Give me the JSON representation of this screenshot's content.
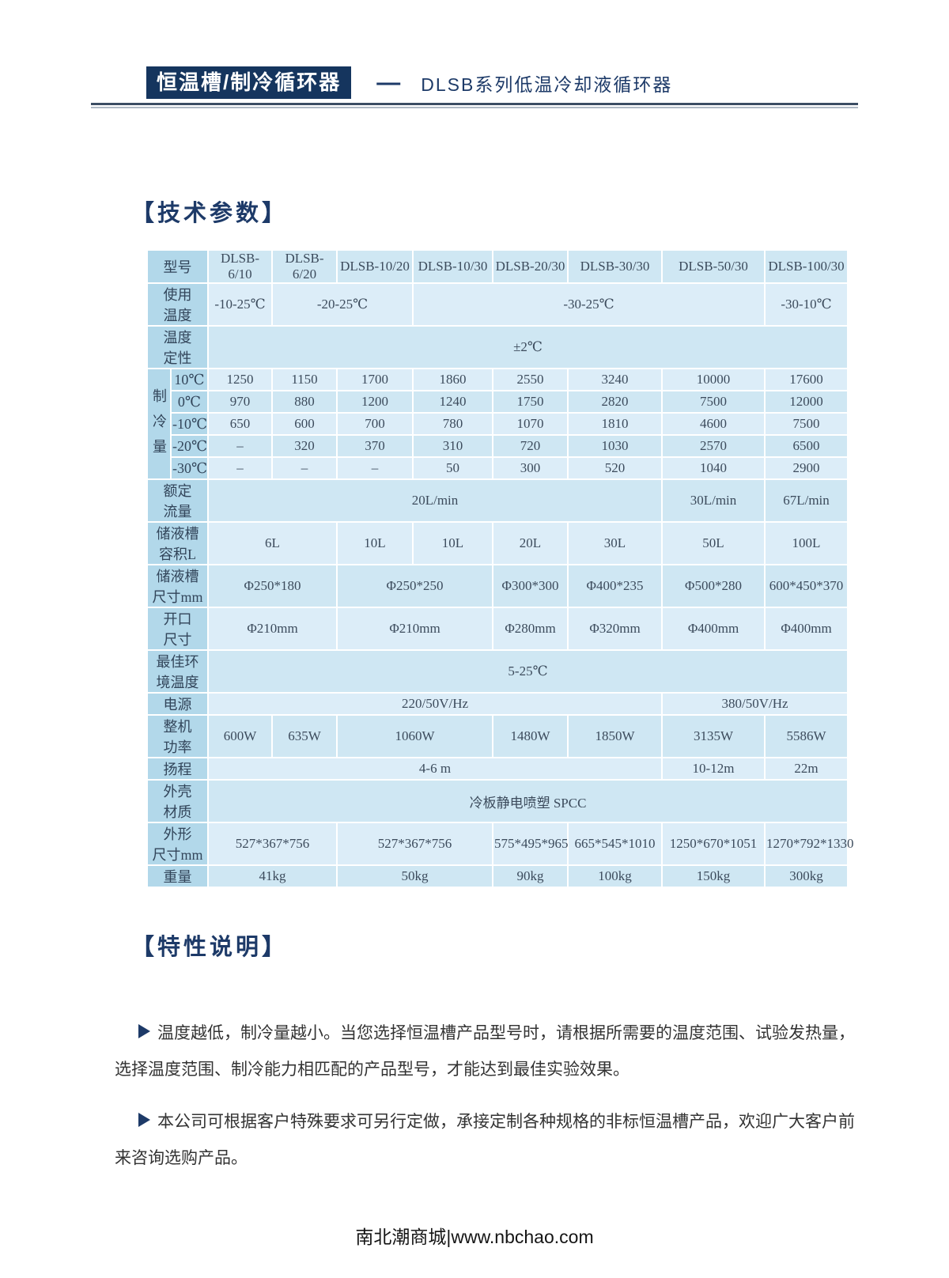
{
  "header": {
    "badge": "恒温槽/制冷循环器",
    "dash": "—",
    "subtitle": "DLSB系列低温冷却液循环器"
  },
  "tech_section": {
    "title": "【技术参数】"
  },
  "table": {
    "model_columns": [
      "DLSB-6/10",
      "DLSB-6/20",
      "DLSB-10/20",
      "DLSB-10/30",
      "DLSB-20/30",
      "DLSB-30/30",
      "DLSB-50/30",
      "DLSB-100/30"
    ],
    "rows": [
      {
        "height": 28,
        "shade": "a",
        "cells": [
          {
            "text": "型号",
            "colspan": 2,
            "label": true
          },
          {
            "text": "DLSB-6/10"
          },
          {
            "text": "DLSB-6/20"
          },
          {
            "text": "DLSB-10/20"
          },
          {
            "text": "DLSB-10/30"
          },
          {
            "text": "DLSB-20/30"
          },
          {
            "text": "DLSB-30/30"
          },
          {
            "text": "DLSB-50/30"
          },
          {
            "text": "DLSB-100/30"
          }
        ]
      },
      {
        "height": 54,
        "shade": "b",
        "cells": [
          {
            "text": "使用\n温度",
            "colspan": 2,
            "label": true
          },
          {
            "text": "-10-25℃"
          },
          {
            "text": "-20-25℃",
            "colspan": 2
          },
          {
            "text": "-30-25℃",
            "colspan": 4
          },
          {
            "text": "-30-10℃"
          }
        ]
      },
      {
        "height": 54,
        "shade": "a",
        "cells": [
          {
            "text": "温度\n定性",
            "colspan": 2,
            "label": true
          },
          {
            "text": "±2℃",
            "colspan": 8
          }
        ]
      },
      {
        "height": 28,
        "shade": "b",
        "cells": [
          {
            "text": "制冷量",
            "rowspan": 5,
            "label": true,
            "vertical": true
          },
          {
            "text": "10℃",
            "label": true
          },
          {
            "text": "1250"
          },
          {
            "text": "1150"
          },
          {
            "text": "1700"
          },
          {
            "text": "1860"
          },
          {
            "text": "2550"
          },
          {
            "text": "3240"
          },
          {
            "text": "10000"
          },
          {
            "text": "17600"
          }
        ]
      },
      {
        "height": 28,
        "shade": "a",
        "cells": [
          {
            "text": "0℃",
            "label": true
          },
          {
            "text": "970"
          },
          {
            "text": "880"
          },
          {
            "text": "1200"
          },
          {
            "text": "1240"
          },
          {
            "text": "1750"
          },
          {
            "text": "2820"
          },
          {
            "text": "7500"
          },
          {
            "text": "12000"
          }
        ]
      },
      {
        "height": 28,
        "shade": "b",
        "cells": [
          {
            "text": "-10℃",
            "label": true
          },
          {
            "text": "650"
          },
          {
            "text": "600"
          },
          {
            "text": "700"
          },
          {
            "text": "780"
          },
          {
            "text": "1070"
          },
          {
            "text": "1810"
          },
          {
            "text": "4600"
          },
          {
            "text": "7500"
          }
        ]
      },
      {
        "height": 28,
        "shade": "a",
        "cells": [
          {
            "text": "-20℃",
            "label": true
          },
          {
            "text": "–"
          },
          {
            "text": "320"
          },
          {
            "text": "370"
          },
          {
            "text": "310"
          },
          {
            "text": "720"
          },
          {
            "text": "1030"
          },
          {
            "text": "2570"
          },
          {
            "text": "6500"
          }
        ]
      },
      {
        "height": 28,
        "shade": "b",
        "cells": [
          {
            "text": "-30℃",
            "label": true
          },
          {
            "text": "–"
          },
          {
            "text": "–"
          },
          {
            "text": "–"
          },
          {
            "text": "50"
          },
          {
            "text": "300"
          },
          {
            "text": "520"
          },
          {
            "text": "1040"
          },
          {
            "text": "2900"
          }
        ]
      },
      {
        "height": 54,
        "shade": "a",
        "cells": [
          {
            "text": "额定\n流量",
            "colspan": 2,
            "label": true
          },
          {
            "text": "20L/min",
            "colspan": 6
          },
          {
            "text": "30L/min"
          },
          {
            "text": "67L/min"
          }
        ]
      },
      {
        "height": 54,
        "shade": "b",
        "cells": [
          {
            "text": "储液槽\n容积L",
            "colspan": 2,
            "label": true
          },
          {
            "text": "6L",
            "colspan": 2
          },
          {
            "text": "10L"
          },
          {
            "text": "10L"
          },
          {
            "text": "20L"
          },
          {
            "text": "30L"
          },
          {
            "text": "50L"
          },
          {
            "text": "100L"
          }
        ]
      },
      {
        "height": 54,
        "shade": "a",
        "cells": [
          {
            "text": "储液槽\n尺寸mm",
            "colspan": 2,
            "label": true
          },
          {
            "text": "Φ250*180",
            "colspan": 2
          },
          {
            "text": "Φ250*250",
            "colspan": 2
          },
          {
            "text": "Φ300*300"
          },
          {
            "text": "Φ400*235"
          },
          {
            "text": "Φ500*280"
          },
          {
            "text": "600*450*370"
          }
        ]
      },
      {
        "height": 54,
        "shade": "b",
        "cells": [
          {
            "text": "开口\n尺寸",
            "colspan": 2,
            "label": true
          },
          {
            "text": "Φ210mm",
            "colspan": 2
          },
          {
            "text": "Φ210mm",
            "colspan": 2
          },
          {
            "text": "Φ280mm"
          },
          {
            "text": "Φ320mm"
          },
          {
            "text": "Φ400mm"
          },
          {
            "text": "Φ400mm"
          }
        ]
      },
      {
        "height": 54,
        "shade": "a",
        "cells": [
          {
            "text": "最佳环\n境温度",
            "colspan": 2,
            "label": true
          },
          {
            "text": "5-25℃",
            "colspan": 8
          }
        ]
      },
      {
        "height": 28,
        "shade": "b",
        "cells": [
          {
            "text": "电源",
            "colspan": 2,
            "label": true
          },
          {
            "text": "220/50V/Hz",
            "colspan": 6
          },
          {
            "text": "380/50V/Hz",
            "colspan": 2
          }
        ]
      },
      {
        "height": 54,
        "shade": "a",
        "cells": [
          {
            "text": "整机\n功率",
            "colspan": 2,
            "label": true
          },
          {
            "text": "600W"
          },
          {
            "text": "635W"
          },
          {
            "text": "1060W",
            "colspan": 2
          },
          {
            "text": "1480W"
          },
          {
            "text": "1850W"
          },
          {
            "text": "3135W"
          },
          {
            "text": "5586W"
          }
        ]
      },
      {
        "height": 28,
        "shade": "b",
        "cells": [
          {
            "text": "扬程",
            "colspan": 2,
            "label": true
          },
          {
            "text": "4-6 m",
            "colspan": 6
          },
          {
            "text": "10-12m"
          },
          {
            "text": "22m"
          }
        ]
      },
      {
        "height": 54,
        "shade": "a",
        "cells": [
          {
            "text": "外壳\n材质",
            "colspan": 2,
            "label": true
          },
          {
            "text": "冷板静电喷塑 SPCC",
            "colspan": 8
          }
        ]
      },
      {
        "height": 54,
        "shade": "b",
        "cells": [
          {
            "text": "外形\n尺寸mm",
            "colspan": 2,
            "label": true
          },
          {
            "text": "527*367*756",
            "colspan": 2
          },
          {
            "text": "527*367*756",
            "colspan": 2
          },
          {
            "text": "575*495*965"
          },
          {
            "text": "665*545*1010"
          },
          {
            "text": "1250*670*1051"
          },
          {
            "text": "1270*792*1330"
          }
        ]
      },
      {
        "height": 28,
        "shade": "a",
        "cells": [
          {
            "text": "重量",
            "colspan": 2,
            "label": true
          },
          {
            "text": "41kg",
            "colspan": 2
          },
          {
            "text": "50kg",
            "colspan": 2
          },
          {
            "text": "90kg"
          },
          {
            "text": "100kg"
          },
          {
            "text": "150kg"
          },
          {
            "text": "300kg"
          }
        ]
      }
    ]
  },
  "features_section": {
    "title": "【特性说明】",
    "bullet_icon": "right-arrowhead",
    "paragraphs": [
      "温度越低，制冷量越小。当您选择恒温槽产品型号时，请根据所需要的温度范围、试验发热量，选择温度范围、制冷能力相匹配的产品型号，才能达到最佳实验效果。",
      "本公司可根据客户特殊要求可另行定做，承接定制各种规格的非标恒温槽产品，欢迎广大客户前来咨询选购产品。"
    ]
  },
  "footer": {
    "text": "南北潮商城|www.nbchao.com"
  },
  "colors": {
    "navy": "#1d3a68",
    "badge_bg": "#15355e",
    "label_bg": "#b2d8ea",
    "row_shade_a": "#cfe7f3",
    "row_shade_b": "#dcedf8"
  }
}
